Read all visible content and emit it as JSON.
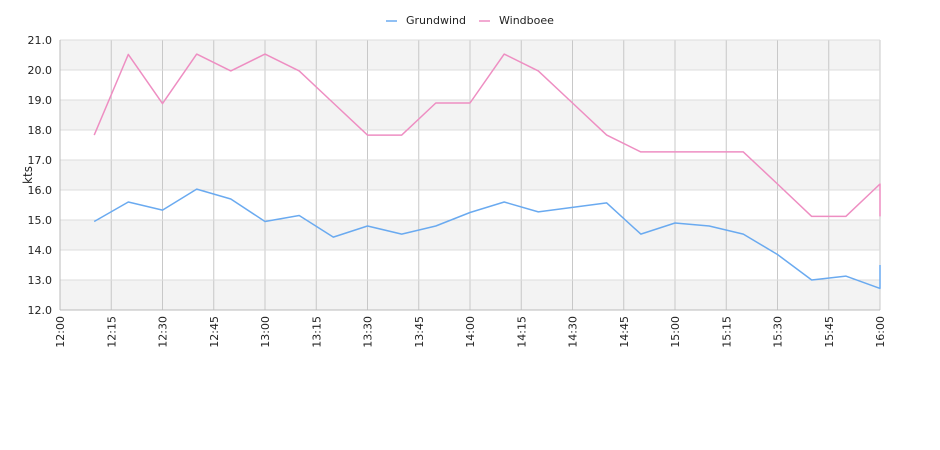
{
  "chart_data": {
    "type": "line",
    "ylabel": "kts",
    "ylim": [
      12.0,
      21.0
    ],
    "y_ticks": [
      "12.0",
      "13.0",
      "14.0",
      "15.0",
      "16.0",
      "17.0",
      "18.0",
      "19.0",
      "20.0",
      "21.0"
    ],
    "x_ticks": [
      "12:00",
      "12:15",
      "12:30",
      "12:45",
      "13:00",
      "13:15",
      "13:30",
      "13:45",
      "14:00",
      "14:15",
      "14:30",
      "14:45",
      "15:00",
      "15:15",
      "15:30",
      "15:45",
      "16:00"
    ],
    "xlim_minutes": [
      720,
      960
    ],
    "legend_position": "top-center",
    "grid": true,
    "series": [
      {
        "name": "Grundwind",
        "color": "#6aaaf0",
        "x": [
          "12:10",
          "12:20",
          "12:30",
          "12:40",
          "12:50",
          "13:00",
          "13:10",
          "13:20",
          "13:30",
          "13:40",
          "13:50",
          "14:00",
          "14:10",
          "14:20",
          "14:30",
          "14:40",
          "14:50",
          "15:00",
          "15:10",
          "15:20",
          "15:30",
          "15:40",
          "15:50",
          "16:00",
          "16:00"
        ],
        "values": [
          14.95,
          15.6,
          15.33,
          16.03,
          15.7,
          14.95,
          15.15,
          14.43,
          14.8,
          14.53,
          14.8,
          15.25,
          15.6,
          15.27,
          15.42,
          15.57,
          14.53,
          14.9,
          14.8,
          14.53,
          13.85,
          13.0,
          13.13,
          12.72,
          13.5
        ]
      },
      {
        "name": "Windboee",
        "color": "#ee8ec2",
        "x": [
          "12:10",
          "12:20",
          "12:30",
          "12:40",
          "12:50",
          "13:00",
          "13:10",
          "13:20",
          "13:30",
          "13:40",
          "13:50",
          "14:00",
          "14:10",
          "14:20",
          "14:30",
          "14:40",
          "14:50",
          "15:00",
          "15:10",
          "15:20",
          "15:30",
          "15:40",
          "15:50",
          "16:00",
          "16:00"
        ],
        "values": [
          17.83,
          20.52,
          18.88,
          20.53,
          19.97,
          20.53,
          19.97,
          18.9,
          17.83,
          17.83,
          18.9,
          18.9,
          20.53,
          19.97,
          18.9,
          17.83,
          17.27,
          17.27,
          17.27,
          17.27,
          16.2,
          15.12,
          15.12,
          16.2,
          15.12
        ]
      }
    ]
  }
}
